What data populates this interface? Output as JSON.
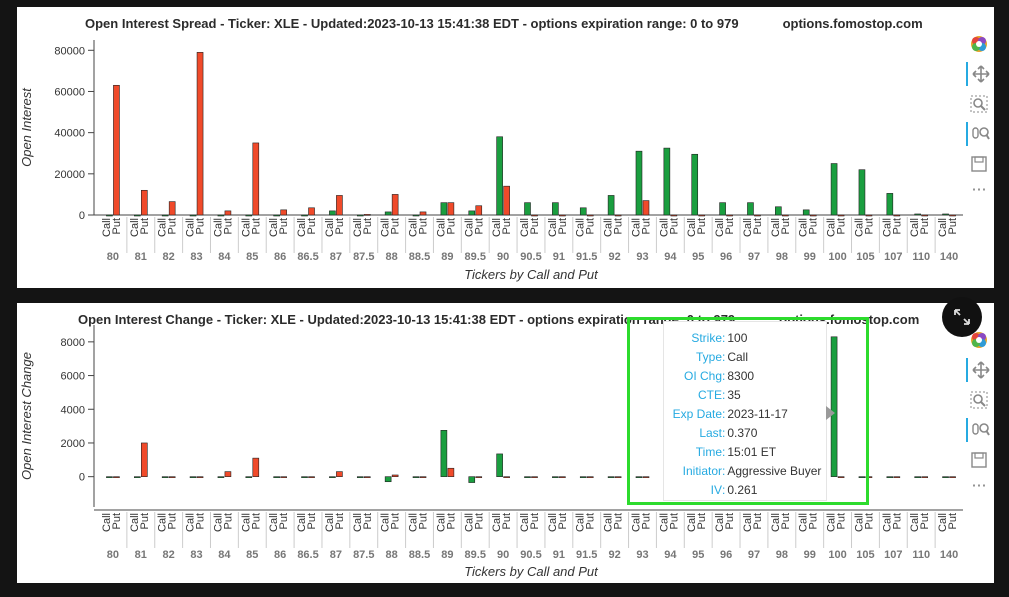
{
  "colors": {
    "call": "#1a9e3f",
    "put": "#f04a2a",
    "tooltip_key": "#26aae1",
    "highlight": "#2ddb2d"
  },
  "strikes": [
    "80",
    "81",
    "82",
    "83",
    "84",
    "85",
    "86",
    "86.5",
    "87",
    "87.5",
    "88",
    "88.5",
    "89",
    "89.5",
    "90",
    "90.5",
    "91",
    "91.5",
    "92",
    "93",
    "94",
    "95",
    "96",
    "97",
    "98",
    "99",
    "100",
    "105",
    "107",
    "110",
    "140"
  ],
  "sub_labels": {
    "call": "Call",
    "put": "Put"
  },
  "chart_data": [
    {
      "type": "bar",
      "title": "Open Interest Spread - Ticker: XLE - Updated:2023-10-13 15:41:38 EDT - options expiration range: 0 to 979",
      "site": "options.fomostop.com",
      "xlabel": "Tickers by Call and Put",
      "ylabel": "Open Interest",
      "ylim": [
        0,
        85000
      ],
      "yticks": [
        "0",
        "20000",
        "40000",
        "60000",
        "80000"
      ],
      "yticks_values": [
        0,
        20000,
        40000,
        60000,
        80000
      ],
      "series": [
        {
          "name": "Call",
          "values": [
            0,
            0,
            0,
            0,
            0,
            0,
            0,
            0,
            2000,
            0,
            1500,
            0,
            6000,
            2000,
            38000,
            6000,
            6000,
            3500,
            9500,
            31000,
            32500,
            29500,
            6000,
            6000,
            4000,
            2500,
            25000,
            22000,
            10500,
            500,
            500
          ]
        },
        {
          "name": "Put",
          "values": [
            63000,
            12000,
            6500,
            79000,
            2000,
            35000,
            2500,
            3500,
            9500,
            300,
            10000,
            1500,
            6000,
            4500,
            14000,
            0,
            0,
            0,
            0,
            7000,
            0,
            0,
            0,
            0,
            0,
            0,
            0,
            0,
            0,
            0,
            0
          ]
        }
      ]
    },
    {
      "type": "bar",
      "title": "Open Interest Change - Ticker: XLE - Updated:2023-10-13 15:41:38 EDT - options expiration range: 0 to 979",
      "site": "options.fomostop.com",
      "xlabel": "Tickers by Call and Put",
      "ylabel": "Open Interest Change",
      "ylim": [
        -1800,
        9000
      ],
      "yticks": [
        "0",
        "2000",
        "4000",
        "6000",
        "8000"
      ],
      "yticks_values": [
        0,
        2000,
        4000,
        6000,
        8000
      ],
      "series": [
        {
          "name": "Call",
          "values": [
            0,
            0,
            0,
            0,
            0,
            0,
            0,
            0,
            0,
            0,
            -300,
            0,
            2750,
            -350,
            1350,
            0,
            0,
            0,
            0,
            0,
            0,
            0,
            0,
            0,
            0,
            0,
            8300,
            0,
            0,
            0,
            0
          ]
        },
        {
          "name": "Put",
          "values": [
            0,
            2000,
            0,
            0,
            300,
            1100,
            0,
            0,
            300,
            0,
            100,
            0,
            500,
            0,
            0,
            0,
            0,
            0,
            0,
            0,
            0,
            0,
            0,
            0,
            0,
            0,
            0,
            0,
            0,
            0,
            0
          ]
        }
      ]
    }
  ],
  "tooltip": [
    {
      "key": "Strike",
      "value": "100"
    },
    {
      "key": "Type",
      "value": "Call"
    },
    {
      "key": "OI Chg",
      "value": "8300"
    },
    {
      "key": "CTE",
      "value": "35"
    },
    {
      "key": "Exp Date",
      "value": "2023-11-17"
    },
    {
      "key": "Last",
      "value": "0.370"
    },
    {
      "key": "Time",
      "value": "15:01 ET"
    },
    {
      "key": "Initiator",
      "value": "Aggressive Buyer"
    },
    {
      "key": "IV",
      "value": "0.261"
    }
  ],
  "toolbar": {
    "tools": [
      "bokeh-logo-icon",
      "pan-icon",
      "box-zoom-icon",
      "wheel-zoom-icon",
      "save-icon",
      "more-icon"
    ]
  }
}
